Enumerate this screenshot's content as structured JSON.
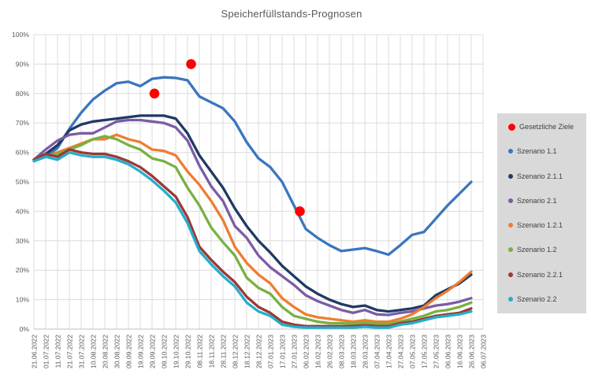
{
  "title": "Speicherfüllstands-Prognosen",
  "colors": {
    "accent_target": "#FF0000",
    "grid": "#dcdcdc",
    "axis_text": "#595959",
    "legend_bg": "#d9d9d9"
  },
  "legend": {
    "items": [
      {
        "label": "Gesetzliche Ziele",
        "color": "#FF0000",
        "marker_size": 9
      },
      {
        "label": "Szenario 1.1",
        "color": "#3A76BE",
        "marker_size": 6
      },
      {
        "label": "Szenario 2.1.1",
        "color": "#1F3A63",
        "marker_size": 6
      },
      {
        "label": "Szenario 2.1",
        "color": "#7B5CA5",
        "marker_size": 6
      },
      {
        "label": "Szenario 1.2.1",
        "color": "#EE7D31",
        "marker_size": 6
      },
      {
        "label": "Szenario 1.2",
        "color": "#77B142",
        "marker_size": 6
      },
      {
        "label": "Szenario 2.2.1",
        "color": "#9B3936",
        "marker_size": 6
      },
      {
        "label": "Szenario 2.2",
        "color": "#25AECB",
        "marker_size": 6
      }
    ]
  },
  "chart_data": {
    "type": "line",
    "title": "Speicherfüllstands-Prognosen",
    "grid": true,
    "legend_position": "right",
    "y_axis": {
      "min": 0,
      "max": 100,
      "step": 10
    },
    "y_tick_labels": [
      "0%",
      "10%",
      "20%",
      "30%",
      "40%",
      "50%",
      "60%",
      "70%",
      "80%",
      "90%",
      "100%"
    ],
    "x_tick_labels": [
      "21.06.2022",
      "01.07.2022",
      "11.07.2022",
      "21.07.2022",
      "31.07.2022",
      "10.08.2022",
      "20.08.2022",
      "30.08.2022",
      "09.09.2022",
      "19.09.2022",
      "29.09.2022",
      "09.10.2022",
      "19.10.2022",
      "29.10.2022",
      "08.11.2022",
      "18.11.2022",
      "28.11.2022",
      "08.12.2022",
      "18.12.2022",
      "28.12.2022",
      "07.01.2023",
      "17.01.2023",
      "27.01.2023",
      "06.02.2023",
      "16.02.2023",
      "26.02.2023",
      "08.03.2023",
      "18.03.2023",
      "28.03.2023",
      "07.04.2023",
      "17.04.2023",
      "27.04.2023",
      "07.05.2023",
      "17.05.2023",
      "27.05.2023",
      "06.06.2023",
      "16.06.2023",
      "26.06.2023",
      "06.07.2023"
    ],
    "series": [
      {
        "name": "Szenario 1.1",
        "color": "#3A76BE",
        "values": [
          57.5,
          58.5,
          61.5,
          68,
          73.5,
          78,
          81,
          83.5,
          84,
          82.5,
          85,
          85.5,
          85.3,
          84.5,
          79,
          77,
          75,
          70.5,
          63.5,
          58,
          55,
          50,
          42,
          34,
          31,
          28.5,
          26.5,
          27,
          27.5,
          26.5,
          25.3,
          28.5,
          32,
          33,
          37.5,
          42,
          46,
          50
        ]
      },
      {
        "name": "Szenario 2.1.1",
        "color": "#1F3A63",
        "values": [
          57.5,
          59.5,
          62.5,
          67.5,
          69.5,
          70.5,
          71,
          71.5,
          72,
          72.5,
          72.5,
          72.5,
          71.5,
          66.5,
          59,
          53.5,
          48,
          41,
          35,
          30,
          26,
          21.5,
          18,
          14.5,
          12,
          10,
          8.5,
          7.5,
          8,
          6.5,
          6,
          6.5,
          7,
          8,
          11.5,
          13.5,
          15.5,
          18.5
        ]
      },
      {
        "name": "Szenario 2.1",
        "color": "#7B5CA5",
        "values": [
          57.5,
          61,
          64,
          66,
          66.5,
          66.5,
          68.5,
          70.5,
          71,
          71,
          70.5,
          70,
          68.5,
          64,
          55.5,
          48.5,
          43.5,
          35,
          31,
          25,
          21,
          18,
          15,
          11.5,
          9.5,
          8,
          6.5,
          5.5,
          6.5,
          5,
          4.8,
          5.5,
          6,
          7,
          8,
          8.5,
          9.3,
          10.5
        ]
      },
      {
        "name": "Szenario 1.2.1",
        "color": "#EE7D31",
        "values": [
          57.5,
          58.5,
          60,
          61.5,
          63,
          64.5,
          64.5,
          66,
          64.5,
          63.5,
          61,
          60.5,
          59,
          53.5,
          49,
          43.5,
          37,
          28,
          22.5,
          18.5,
          15.5,
          10.5,
          7.5,
          5,
          4,
          3.5,
          3,
          2.5,
          3,
          2.5,
          2.5,
          3.5,
          5,
          7.5,
          10.5,
          13,
          16,
          19.5
        ]
      },
      {
        "name": "Szenario 1.2",
        "color": "#77B142",
        "values": [
          57.5,
          58.5,
          59.5,
          61,
          62.5,
          64.5,
          65.5,
          64.5,
          62.5,
          61,
          58,
          57,
          55,
          48,
          42,
          34.5,
          29.5,
          25,
          17.5,
          14,
          12,
          7.5,
          4.5,
          3.5,
          2.5,
          2,
          2,
          1.8,
          2.2,
          1.8,
          1.8,
          2.5,
          3.5,
          4.5,
          6,
          6.5,
          7.5,
          9
        ]
      },
      {
        "name": "Szenario 2.2.1",
        "color": "#9B3936",
        "values": [
          57.5,
          59.5,
          58.5,
          61,
          60,
          59.5,
          59.5,
          58.5,
          57,
          55,
          52,
          48.5,
          45,
          38,
          28,
          23.5,
          19.5,
          16,
          11,
          7.5,
          5.5,
          2.5,
          1.5,
          1,
          1,
          1,
          1,
          1,
          1.3,
          1,
          1,
          2,
          2.5,
          3.5,
          4.5,
          5,
          5.5,
          7
        ]
      },
      {
        "name": "Szenario 2.2",
        "color": "#25AECB",
        "values": [
          57,
          58.5,
          57.5,
          60,
          59,
          58.5,
          58.5,
          57.5,
          56,
          53.5,
          50.5,
          47,
          43,
          36,
          26.5,
          22,
          18,
          14.5,
          9,
          6,
          4.5,
          1.5,
          0.8,
          0.5,
          0.5,
          0.5,
          0.5,
          0.5,
          0.8,
          0.5,
          0.5,
          1.5,
          2,
          3,
          4,
          4.5,
          5,
          6
        ]
      }
    ],
    "targets": {
      "name": "Gesetzliche Ziele",
      "color": "#FF0000",
      "points": [
        {
          "date": "01.10.2022",
          "value": 80,
          "x_index": 10.2
        },
        {
          "date": "01.11.2022",
          "value": 90,
          "x_index": 13.3
        },
        {
          "date": "01.02.2023",
          "value": 40,
          "x_index": 22.5
        }
      ]
    }
  }
}
